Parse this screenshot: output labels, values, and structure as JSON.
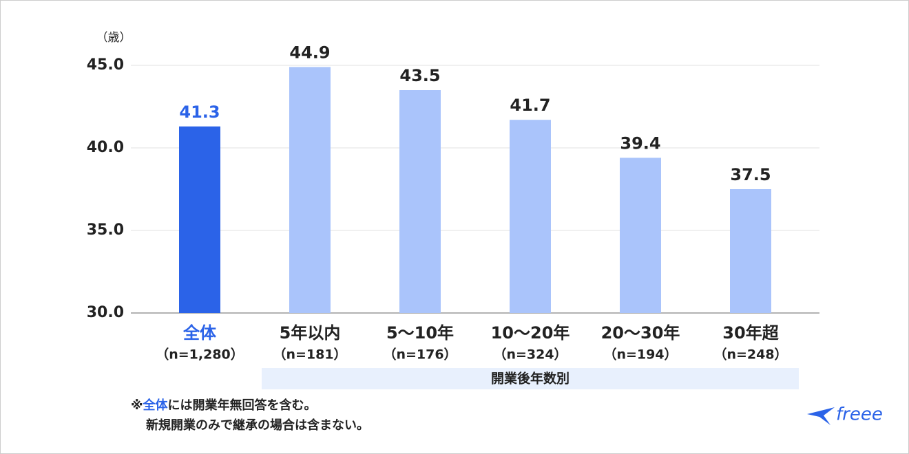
{
  "chart_data": {
    "type": "bar",
    "y_unit": "（歳）",
    "categories": [
      "全体",
      "5年以内",
      "5〜10年",
      "10〜20年",
      "20〜30年",
      "30年超"
    ],
    "sample_sizes": [
      "（n=1,280）",
      "（n=181）",
      "（n=176）",
      "（n=324）",
      "（n=194）",
      "（n=248）"
    ],
    "values": [
      41.3,
      44.9,
      43.5,
      41.7,
      39.4,
      37.5
    ],
    "colors": [
      "#2b63e8",
      "#aac4fb",
      "#aac4fb",
      "#aac4fb",
      "#aac4fb",
      "#aac4fb"
    ],
    "label_colors": [
      "#2b63e8",
      "#222222",
      "#222222",
      "#222222",
      "#222222",
      "#222222"
    ],
    "ylim": [
      30,
      45
    ],
    "yticks": [
      {
        "value": 30,
        "label": "30.0"
      },
      {
        "value": 35,
        "label": "35.0"
      },
      {
        "value": 40,
        "label": "40.0"
      },
      {
        "value": 45,
        "label": "45.0"
      }
    ],
    "grid": true,
    "group_label": "開業後年数別"
  },
  "footnote": {
    "lines": [
      [
        "※",
        "全体",
        "には開業年無回答を含む。"
      ],
      [
        "新規開業のみで継承の場合は含まない。"
      ]
    ]
  },
  "logo": "freee"
}
